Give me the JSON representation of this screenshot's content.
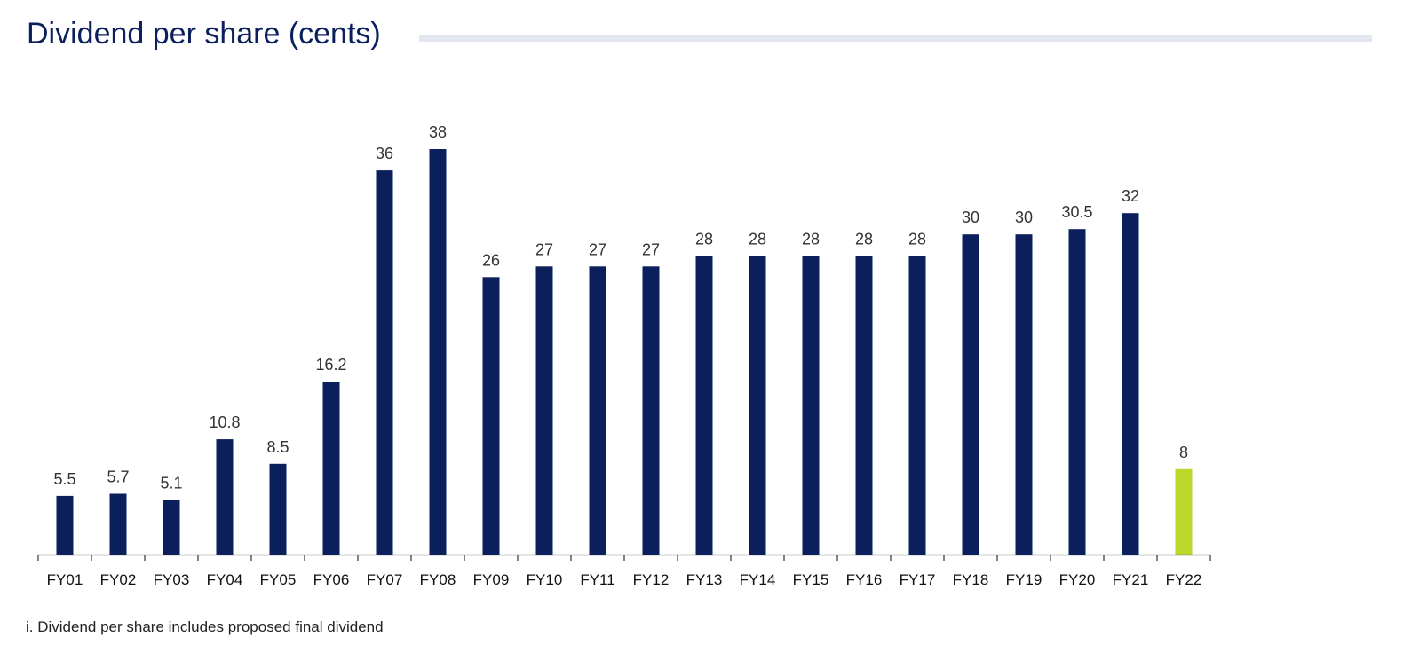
{
  "header": {
    "title": "Dividend per share (cents)"
  },
  "footnote": "i. Dividend per share includes proposed final dividend",
  "colors": {
    "bar": "#0a1f5c",
    "highlight": "#bed72d",
    "axis": "#333333",
    "label": "#333333"
  },
  "chart_data": {
    "type": "bar",
    "title": "Dividend per share (cents)",
    "xlabel": "",
    "ylabel": "",
    "ylim": [
      0,
      38
    ],
    "grid": false,
    "legend": "none",
    "categories": [
      "FY01",
      "FY02",
      "FY03",
      "FY04",
      "FY05",
      "FY06",
      "FY07",
      "FY08",
      "FY09",
      "FY10",
      "FY11",
      "FY12",
      "FY13",
      "FY14",
      "FY15",
      "FY16",
      "FY17",
      "FY18",
      "FY19",
      "FY20",
      "FY21",
      "FY22"
    ],
    "values": [
      5.5,
      5.7,
      5.1,
      10.8,
      8.5,
      16.2,
      36,
      38,
      26,
      27,
      27,
      27,
      28,
      28,
      28,
      28,
      28,
      30,
      30,
      30.5,
      32,
      8
    ],
    "labels": [
      "5.5",
      "5.7",
      "5.1",
      "10.8",
      "8.5",
      "16.2",
      "36",
      "38",
      "26",
      "27",
      "27",
      "27",
      "28",
      "28",
      "28",
      "28",
      "28",
      "30",
      "30",
      "30.5",
      "32",
      "8"
    ],
    "highlighted_categories": [
      "FY22"
    ]
  }
}
